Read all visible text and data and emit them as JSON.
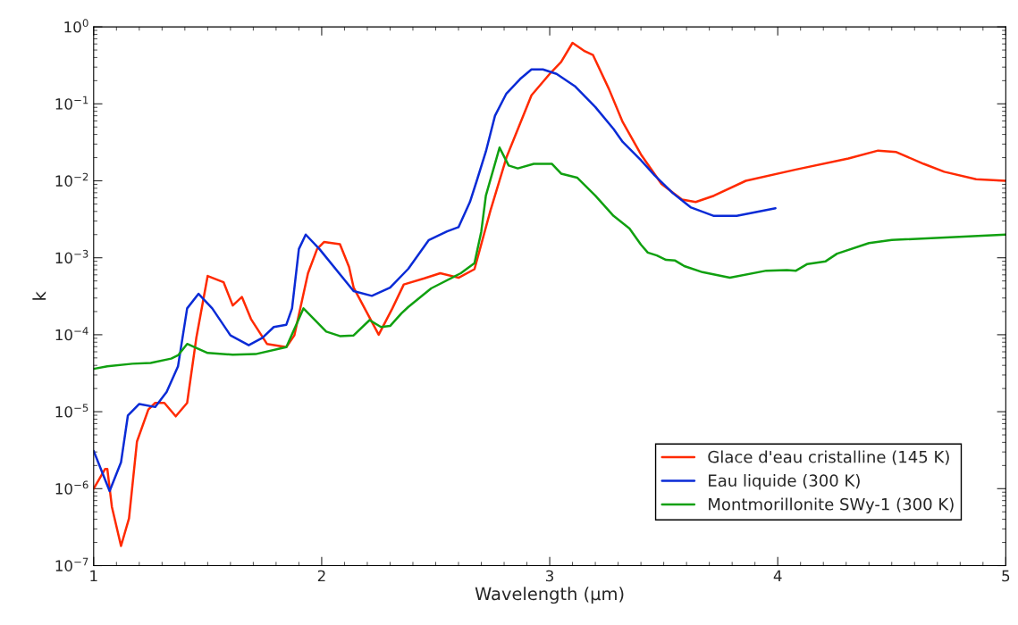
{
  "chart_data": {
    "type": "line",
    "xlabel": "Wavelength (µm)",
    "ylabel": "k",
    "log": "y",
    "legend": "bottom right",
    "xlim": [
      1,
      5
    ],
    "xticks": [
      1,
      2,
      3,
      4,
      5
    ],
    "ylim": [
      1e-07,
      1
    ],
    "yticks": [
      {
        "value": 1e-07,
        "label": "10$^{−7}$"
      },
      {
        "value": 1e-06,
        "label": "10$^{−6}$"
      },
      {
        "value": 1e-05,
        "label": "10$^{−5}$"
      },
      {
        "value": 0.0001,
        "label": "10$^{−4}$"
      },
      {
        "value": 0.001,
        "label": "10$^{−3}$"
      },
      {
        "value": 0.01,
        "label": "10$^{−2}$"
      },
      {
        "value": 0.1,
        "label": "10$^{−1}$"
      },
      {
        "value": 1,
        "label": "10$^{0}$"
      }
    ],
    "series": [
      {
        "name": "Glace d'eau cristalline (145 K)",
        "color": "#ff2a00",
        "x": [
          1.0,
          1.05,
          1.06,
          1.08,
          1.12,
          1.155,
          1.19,
          1.24,
          1.27,
          1.31,
          1.36,
          1.41,
          1.45,
          1.5,
          1.57,
          1.61,
          1.65,
          1.69,
          1.76,
          1.845,
          1.88,
          1.94,
          1.98,
          2.01,
          2.08,
          2.12,
          2.14,
          2.25,
          2.31,
          2.36,
          2.45,
          2.52,
          2.6,
          2.67,
          2.74,
          2.81,
          2.92,
          3.0,
          3.05,
          3.1,
          3.15,
          3.19,
          3.26,
          3.32,
          3.4,
          3.49,
          3.58,
          3.64,
          3.72,
          3.86,
          4.08,
          4.31,
          4.44,
          4.52,
          4.64,
          4.73,
          4.87,
          5.0
        ],
        "values": [
          1e-06,
          1.8e-06,
          1.8e-06,
          5.8e-07,
          1.8e-07,
          4.1e-07,
          4.1e-06,
          1.07e-05,
          1.3e-05,
          1.3e-05,
          8.7e-06,
          1.3e-05,
          9e-05,
          0.00058,
          0.00048,
          0.00024,
          0.00031,
          0.00016,
          7.6e-05,
          6.9e-05,
          9.8e-05,
          0.00063,
          0.0013,
          0.0016,
          0.0015,
          0.00076,
          0.00041,
          0.0001,
          0.00022,
          0.00045,
          0.00054,
          0.00063,
          0.00055,
          0.00071,
          0.0041,
          0.02,
          0.129,
          0.245,
          0.35,
          0.62,
          0.49,
          0.43,
          0.155,
          0.058,
          0.022,
          0.0091,
          0.0057,
          0.0053,
          0.0064,
          0.01,
          0.014,
          0.0195,
          0.0247,
          0.0236,
          0.0166,
          0.0131,
          0.0105,
          0.01
        ]
      },
      {
        "name": "Eau liquide (300 K)",
        "color": "#0a2bd6",
        "x": [
          1.0,
          1.07,
          1.12,
          1.15,
          1.2,
          1.27,
          1.32,
          1.37,
          1.41,
          1.46,
          1.52,
          1.6,
          1.68,
          1.74,
          1.79,
          1.845,
          1.87,
          1.9,
          1.93,
          1.99,
          2.14,
          2.22,
          2.3,
          2.38,
          2.47,
          2.55,
          2.6,
          2.65,
          2.68,
          2.72,
          2.76,
          2.81,
          2.87,
          2.92,
          2.97,
          3.03,
          3.11,
          3.2,
          3.28,
          3.32,
          3.4,
          3.46,
          3.54,
          3.62,
          3.72,
          3.82,
          3.99
        ],
        "values": [
          3.1e-06,
          9.3e-07,
          2.2e-06,
          8.9e-06,
          1.26e-05,
          1.15e-05,
          1.8e-05,
          3.9e-05,
          0.00022,
          0.00034,
          0.00022,
          9.8e-05,
          7.3e-05,
          9.1e-05,
          0.000126,
          0.000135,
          0.00022,
          0.0013,
          0.002,
          0.0013,
          0.00037,
          0.00032,
          0.00041,
          0.00072,
          0.0017,
          0.0022,
          0.0025,
          0.0053,
          0.01,
          0.024,
          0.07,
          0.136,
          0.21,
          0.28,
          0.28,
          0.245,
          0.17,
          0.091,
          0.047,
          0.032,
          0.0185,
          0.0118,
          0.0069,
          0.0045,
          0.0035,
          0.0035,
          0.0044
        ]
      },
      {
        "name": "Montmorillonite SWy-1 (300 K)",
        "color": "#10a010",
        "x": [
          1.0,
          1.06,
          1.17,
          1.25,
          1.34,
          1.37,
          1.41,
          1.5,
          1.61,
          1.71,
          1.845,
          1.92,
          2.02,
          2.08,
          2.14,
          2.21,
          2.26,
          2.3,
          2.35,
          2.38,
          2.48,
          2.61,
          2.67,
          2.7,
          2.72,
          2.78,
          2.82,
          2.86,
          2.93,
          3.01,
          3.05,
          3.12,
          3.2,
          3.28,
          3.35,
          3.4,
          3.43,
          3.47,
          3.51,
          3.55,
          3.59,
          3.67,
          3.79,
          3.95,
          4.04,
          4.08,
          4.13,
          4.21,
          4.26,
          4.4,
          4.5,
          5.0
        ],
        "values": [
          3.6e-05,
          3.9e-05,
          4.2e-05,
          4.3e-05,
          4.9e-05,
          5.4e-05,
          7.6e-05,
          5.8e-05,
          5.5e-05,
          5.6e-05,
          6.9e-05,
          0.00022,
          0.00011,
          9.6e-05,
          9.8e-05,
          0.000155,
          0.000126,
          0.00013,
          0.00019,
          0.00023,
          0.0004,
          0.00063,
          0.00085,
          0.0022,
          0.0064,
          0.027,
          0.0158,
          0.0145,
          0.0166,
          0.0166,
          0.0124,
          0.011,
          0.0064,
          0.0035,
          0.0024,
          0.00148,
          0.00117,
          0.00107,
          0.00094,
          0.00092,
          0.00078,
          0.00065,
          0.00055,
          0.00068,
          0.00069,
          0.00068,
          0.00083,
          0.0009,
          0.00113,
          0.00155,
          0.0017,
          0.002
        ]
      }
    ]
  }
}
